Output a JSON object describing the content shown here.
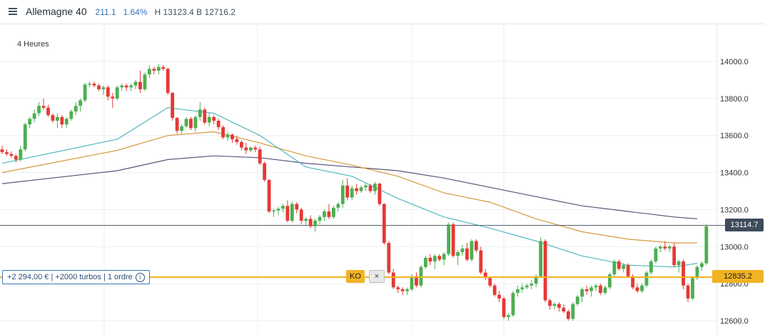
{
  "header": {
    "menu_icon": "hamburger-icon",
    "instrument": "Allemagne 40",
    "change": "211.1",
    "change_pct": "1.64%",
    "high_low": "H 13123.4 B 12716.2"
  },
  "timeframe": "4 Heures",
  "position": {
    "label": "+2 294,00 € | +2000 turbos | 1 ordre",
    "info_icon": "info-icon"
  },
  "ko": {
    "label": "KO",
    "close_label": "×",
    "level": "12835.2"
  },
  "last_price": "13114.7",
  "colors": {
    "up": "#4caf50",
    "down": "#e53935",
    "ma_fast": "#52b7c0",
    "ma_mid": "#d39a3c",
    "ma_slow": "#5b5479",
    "ko_line": "#f1b323",
    "last_line": "#3e4b5b"
  },
  "chart_data": {
    "type": "candlestick",
    "y_ticks": [
      "14000.0",
      "13800.0",
      "13600.0",
      "13400.0",
      "13200.0",
      "13000.0",
      "12800.0",
      "12600.0"
    ],
    "ylim": [
      12560,
      14150
    ],
    "grid": true,
    "candles": [
      [
        13525,
        13545,
        13500,
        13510
      ],
      [
        13510,
        13525,
        13490,
        13500
      ],
      [
        13500,
        13515,
        13480,
        13490
      ],
      [
        13490,
        13500,
        13455,
        13470
      ],
      [
        13470,
        13545,
        13460,
        13525
      ],
      [
        13525,
        13670,
        13515,
        13660
      ],
      [
        13660,
        13700,
        13640,
        13690
      ],
      [
        13690,
        13740,
        13670,
        13720
      ],
      [
        13720,
        13780,
        13705,
        13760
      ],
      [
        13760,
        13800,
        13740,
        13750
      ],
      [
        13750,
        13765,
        13700,
        13710
      ],
      [
        13710,
        13720,
        13670,
        13680
      ],
      [
        13680,
        13720,
        13640,
        13700
      ],
      [
        13700,
        13710,
        13640,
        13660
      ],
      [
        13660,
        13700,
        13640,
        13690
      ],
      [
        13690,
        13740,
        13680,
        13730
      ],
      [
        13730,
        13780,
        13710,
        13760
      ],
      [
        13760,
        13800,
        13730,
        13790
      ],
      [
        13790,
        13885,
        13780,
        13875
      ],
      [
        13875,
        13890,
        13860,
        13880
      ],
      [
        13880,
        13890,
        13860,
        13870
      ],
      [
        13870,
        13880,
        13840,
        13850
      ],
      [
        13850,
        13870,
        13820,
        13860
      ],
      [
        13860,
        13870,
        13790,
        13810
      ],
      [
        13810,
        13830,
        13750,
        13800
      ],
      [
        13800,
        13870,
        13790,
        13860
      ],
      [
        13860,
        13880,
        13840,
        13870
      ],
      [
        13870,
        13880,
        13840,
        13860
      ],
      [
        13860,
        13880,
        13840,
        13870
      ],
      [
        13870,
        13900,
        13850,
        13890
      ],
      [
        13890,
        13950,
        13830,
        13850
      ],
      [
        13850,
        13940,
        13840,
        13930
      ],
      [
        13930,
        13980,
        13910,
        13960
      ],
      [
        13960,
        13970,
        13930,
        13950
      ],
      [
        13950,
        13985,
        13930,
        13970
      ],
      [
        13970,
        13980,
        13950,
        13960
      ],
      [
        13960,
        13965,
        13820,
        13830
      ],
      [
        13830,
        13835,
        13680,
        13695
      ],
      [
        13695,
        13700,
        13610,
        13625
      ],
      [
        13625,
        13660,
        13610,
        13650
      ],
      [
        13650,
        13700,
        13640,
        13690
      ],
      [
        13690,
        13700,
        13630,
        13640
      ],
      [
        13640,
        13710,
        13620,
        13700
      ],
      [
        13700,
        13780,
        13680,
        13740
      ],
      [
        13740,
        13750,
        13660,
        13670
      ],
      [
        13670,
        13720,
        13650,
        13700
      ],
      [
        13700,
        13710,
        13660,
        13680
      ],
      [
        13680,
        13690,
        13630,
        13645
      ],
      [
        13645,
        13655,
        13580,
        13590
      ],
      [
        13590,
        13620,
        13570,
        13605
      ],
      [
        13605,
        13610,
        13560,
        13580
      ],
      [
        13580,
        13600,
        13550,
        13565
      ],
      [
        13565,
        13575,
        13520,
        13535
      ],
      [
        13535,
        13560,
        13500,
        13520
      ],
      [
        13520,
        13540,
        13510,
        13535
      ],
      [
        13535,
        13545,
        13510,
        13525
      ],
      [
        13525,
        13540,
        13440,
        13450
      ],
      [
        13450,
        13460,
        13350,
        13360
      ],
      [
        13360,
        13365,
        13180,
        13190
      ],
      [
        13190,
        13205,
        13160,
        13195
      ],
      [
        13195,
        13215,
        13170,
        13205
      ],
      [
        13205,
        13230,
        13185,
        13220
      ],
      [
        13220,
        13250,
        13130,
        13140
      ],
      [
        13140,
        13245,
        13130,
        13230
      ],
      [
        13230,
        13240,
        13180,
        13200
      ],
      [
        13200,
        13210,
        13120,
        13140
      ],
      [
        13140,
        13160,
        13110,
        13150
      ],
      [
        13150,
        13170,
        13100,
        13110
      ],
      [
        13110,
        13150,
        13080,
        13140
      ],
      [
        13140,
        13170,
        13120,
        13160
      ],
      [
        13160,
        13200,
        13140,
        13190
      ],
      [
        13190,
        13230,
        13150,
        13160
      ],
      [
        13160,
        13220,
        13150,
        13210
      ],
      [
        13210,
        13240,
        13190,
        13230
      ],
      [
        13230,
        13360,
        13210,
        13330
      ],
      [
        13330,
        13370,
        13250,
        13265
      ],
      [
        13265,
        13330,
        13250,
        13315
      ],
      [
        13315,
        13340,
        13280,
        13300
      ],
      [
        13300,
        13330,
        13290,
        13320
      ],
      [
        13320,
        13340,
        13300,
        13330
      ],
      [
        13330,
        13340,
        13290,
        13300
      ],
      [
        13300,
        13350,
        13280,
        13340
      ],
      [
        13340,
        13345,
        13220,
        13230
      ],
      [
        13230,
        13235,
        13010,
        13020
      ],
      [
        13020,
        13030,
        12850,
        12860
      ],
      [
        12860,
        12880,
        12770,
        12780
      ],
      [
        12780,
        12790,
        12750,
        12770
      ],
      [
        12770,
        12780,
        12740,
        12760
      ],
      [
        12760,
        12780,
        12740,
        12770
      ],
      [
        12770,
        12850,
        12760,
        12840
      ],
      [
        12840,
        12860,
        12780,
        12790
      ],
      [
        12790,
        12900,
        12780,
        12890
      ],
      [
        12890,
        12950,
        12880,
        12940
      ],
      [
        12940,
        12960,
        12900,
        12920
      ],
      [
        12920,
        12960,
        12880,
        12950
      ],
      [
        12950,
        12960,
        12920,
        12930
      ],
      [
        12930,
        12970,
        12900,
        12960
      ],
      [
        12960,
        13130,
        12950,
        13120
      ],
      [
        13120,
        13130,
        12940,
        12950
      ],
      [
        12950,
        12980,
        12900,
        12970
      ],
      [
        12970,
        13010,
        12950,
        12990
      ],
      [
        12990,
        13020,
        12920,
        12930
      ],
      [
        12930,
        13040,
        12920,
        13030
      ],
      [
        13030,
        13040,
        12970,
        12980
      ],
      [
        12980,
        13000,
        12850,
        12860
      ],
      [
        12860,
        12880,
        12820,
        12830
      ],
      [
        12830,
        12840,
        12780,
        12790
      ],
      [
        12790,
        12800,
        12730,
        12740
      ],
      [
        12740,
        12760,
        12700,
        12720
      ],
      [
        12720,
        12730,
        12610,
        12620
      ],
      [
        12620,
        12640,
        12600,
        12630
      ],
      [
        12630,
        12760,
        12620,
        12750
      ],
      [
        12750,
        12790,
        12730,
        12770
      ],
      [
        12770,
        12800,
        12750,
        12780
      ],
      [
        12780,
        12800,
        12770,
        12790
      ],
      [
        12790,
        12820,
        12770,
        12800
      ],
      [
        12800,
        12850,
        12780,
        12840
      ],
      [
        12840,
        13050,
        12830,
        13030
      ],
      [
        13030,
        13040,
        12700,
        12710
      ],
      [
        12710,
        12720,
        12660,
        12680
      ],
      [
        12680,
        12700,
        12660,
        12690
      ],
      [
        12690,
        12700,
        12650,
        12670
      ],
      [
        12670,
        12690,
        12640,
        12650
      ],
      [
        12650,
        12660,
        12600,
        12610
      ],
      [
        12610,
        12700,
        12600,
        12690
      ],
      [
        12690,
        12740,
        12680,
        12730
      ],
      [
        12730,
        12780,
        12700,
        12770
      ],
      [
        12770,
        12790,
        12740,
        12760
      ],
      [
        12760,
        12790,
        12730,
        12780
      ],
      [
        12780,
        12800,
        12760,
        12790
      ],
      [
        12790,
        12800,
        12740,
        12750
      ],
      [
        12750,
        12790,
        12740,
        12780
      ],
      [
        12780,
        12860,
        12770,
        12850
      ],
      [
        12850,
        12930,
        12840,
        12920
      ],
      [
        12920,
        12930,
        12870,
        12880
      ],
      [
        12880,
        12910,
        12860,
        12900
      ],
      [
        12900,
        12910,
        12830,
        12840
      ],
      [
        12840,
        12850,
        12770,
        12780
      ],
      [
        12780,
        12800,
        12750,
        12760
      ],
      [
        12760,
        12800,
        12750,
        12790
      ],
      [
        12790,
        12870,
        12780,
        12860
      ],
      [
        12860,
        12930,
        12850,
        12920
      ],
      [
        12920,
        13000,
        12910,
        12990
      ],
      [
        12990,
        13010,
        12970,
        13000
      ],
      [
        13000,
        13030,
        12980,
        12990
      ],
      [
        12990,
        13010,
        12970,
        13000
      ],
      [
        13000,
        13020,
        12890,
        12900
      ],
      [
        12900,
        12930,
        12860,
        12920
      ],
      [
        12920,
        12930,
        12770,
        12790
      ],
      [
        12790,
        12800,
        12700,
        12720
      ],
      [
        12720,
        12840,
        12710,
        12830
      ],
      [
        12830,
        12900,
        12820,
        12890
      ],
      [
        12890,
        12920,
        12870,
        12910
      ],
      [
        12910,
        13120,
        12900,
        13110
      ]
    ],
    "ma_fast": [
      [
        0,
        13450
      ],
      [
        25,
        13580
      ],
      [
        36,
        13750
      ],
      [
        46,
        13720
      ],
      [
        56,
        13600
      ],
      [
        66,
        13430
      ],
      [
        76,
        13380
      ],
      [
        86,
        13260
      ],
      [
        96,
        13160
      ],
      [
        106,
        13100
      ],
      [
        116,
        13030
      ],
      [
        126,
        12950
      ],
      [
        136,
        12900
      ],
      [
        146,
        12890
      ],
      [
        151,
        12910
      ]
    ],
    "ma_mid": [
      [
        0,
        13400
      ],
      [
        25,
        13520
      ],
      [
        36,
        13600
      ],
      [
        46,
        13620
      ],
      [
        56,
        13560
      ],
      [
        66,
        13490
      ],
      [
        76,
        13440
      ],
      [
        86,
        13380
      ],
      [
        96,
        13290
      ],
      [
        106,
        13240
      ],
      [
        116,
        13150
      ],
      [
        126,
        13080
      ],
      [
        136,
        13040
      ],
      [
        146,
        13020
      ],
      [
        151,
        13020
      ]
    ],
    "ma_slow": [
      [
        0,
        13340
      ],
      [
        25,
        13410
      ],
      [
        36,
        13470
      ],
      [
        46,
        13490
      ],
      [
        56,
        13480
      ],
      [
        66,
        13450
      ],
      [
        76,
        13430
      ],
      [
        86,
        13410
      ],
      [
        96,
        13370
      ],
      [
        106,
        13320
      ],
      [
        116,
        13270
      ],
      [
        126,
        13220
      ],
      [
        136,
        13190
      ],
      [
        146,
        13160
      ],
      [
        151,
        13150
      ]
    ]
  }
}
